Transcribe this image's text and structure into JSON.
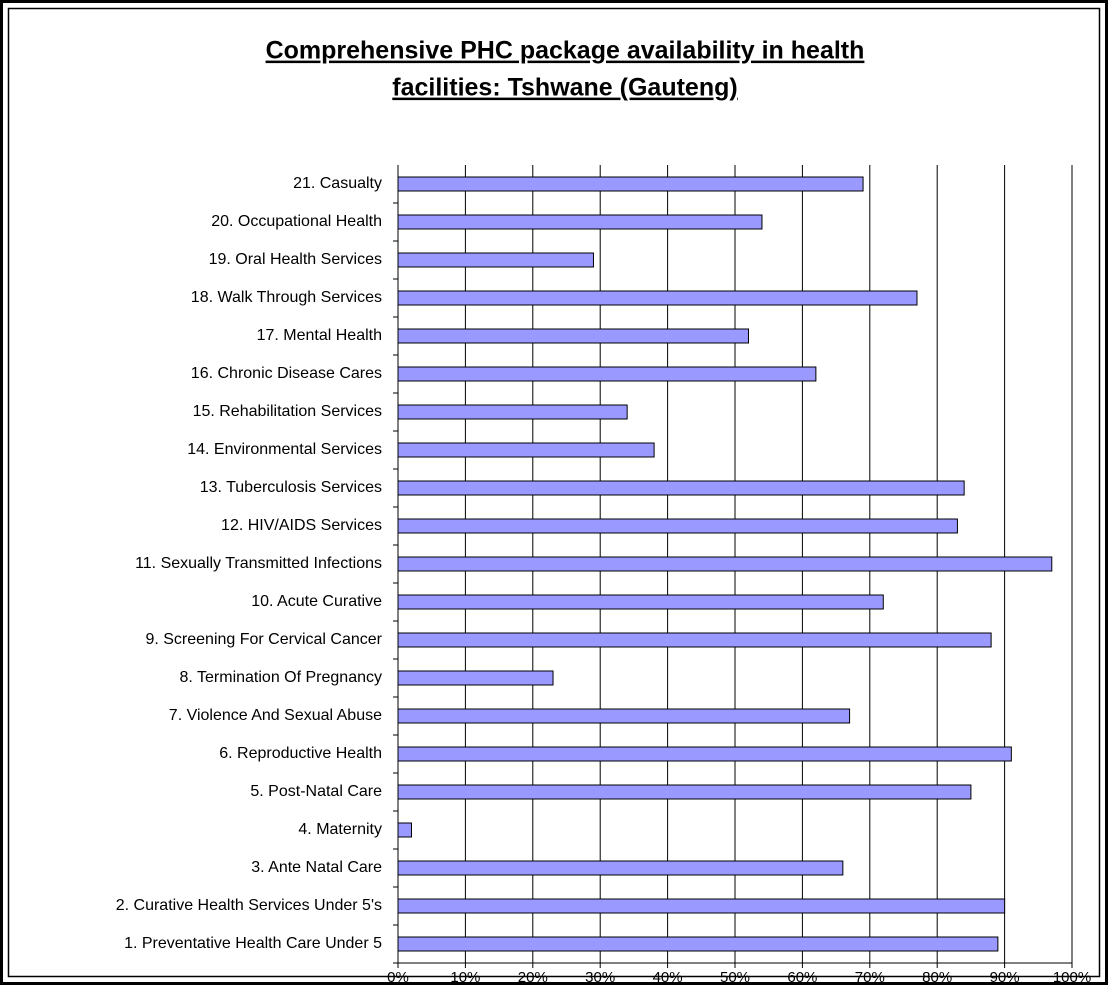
{
  "chart_data": {
    "type": "bar",
    "orientation": "horizontal",
    "title": [
      "Comprehensive PHC package availability in health",
      "facilities: Tshwane (Gauteng)"
    ],
    "categories": [
      "1. Preventative Health Care Under 5",
      "2. Curative Health Services Under 5's",
      "3. Ante Natal Care",
      "4. Maternity",
      "5. Post-Natal Care",
      "6. Reproductive Health",
      "7. Violence And Sexual Abuse",
      "8. Termination Of Pregnancy",
      "9. Screening For Cervical Cancer",
      "10. Acute Curative",
      "11. Sexually Transmitted Infections",
      "12. HIV/AIDS Services",
      "13. Tuberculosis Services",
      "14. Environmental Services",
      "15. Rehabilitation Services",
      "16. Chronic Disease Cares",
      "17. Mental Health",
      "18. Walk Through Services",
      "19. Oral Health Services",
      "20. Occupational Health",
      "21. Casualty"
    ],
    "values": [
      89,
      90,
      66,
      2,
      85,
      91,
      67,
      23,
      88,
      72,
      97,
      83,
      84,
      38,
      34,
      62,
      52,
      77,
      29,
      54,
      69
    ],
    "color": "#9999ff",
    "xlim": [
      0,
      100
    ],
    "xticks": [
      {
        "value": 0,
        "label": "0%"
      },
      {
        "value": 10,
        "label": "10%"
      },
      {
        "value": 20,
        "label": "20%"
      },
      {
        "value": 30,
        "label": "30%"
      },
      {
        "value": 40,
        "label": "40%"
      },
      {
        "value": 50,
        "label": "50%"
      },
      {
        "value": 60,
        "label": "60%"
      },
      {
        "value": 70,
        "label": "70%"
      },
      {
        "value": 80,
        "label": "80%"
      },
      {
        "value": 90,
        "label": "90%"
      },
      {
        "value": 100,
        "label": "100%"
      }
    ],
    "grid": true
  }
}
